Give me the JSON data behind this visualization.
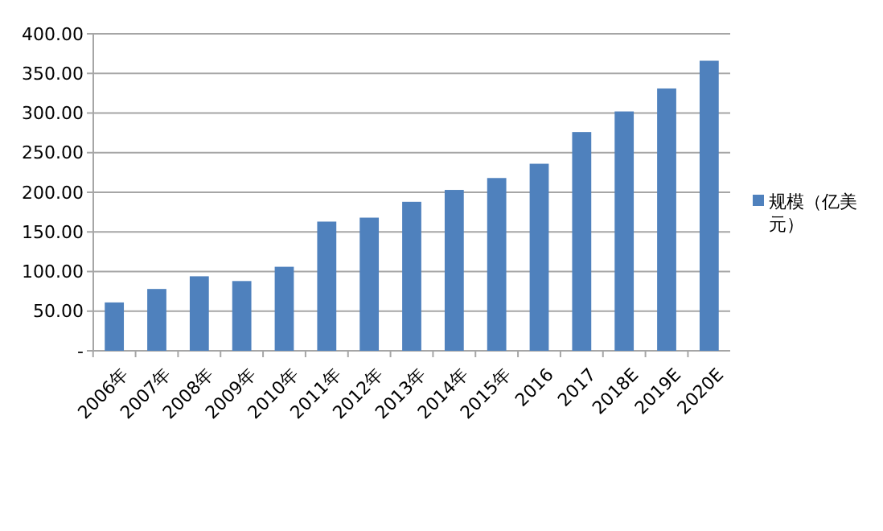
{
  "chart_data": {
    "type": "bar",
    "categories": [
      "2006年",
      "2007年",
      "2008年",
      "2009年",
      "2010年",
      "2011年",
      "2012年",
      "2013年",
      "2014年",
      "2015年",
      "2016",
      "2017",
      "2018E",
      "2019E",
      "2020E"
    ],
    "series": [
      {
        "name": "规模（亿美元）",
        "color": "#4f81bd",
        "values": [
          61,
          78,
          94,
          88,
          106,
          163,
          168,
          188,
          203,
          218,
          236,
          276,
          302,
          331,
          366
        ]
      }
    ],
    "ylim": [
      0,
      400
    ],
    "yticks": [
      {
        "value": 0,
        "label": "-"
      },
      {
        "value": 50,
        "label": "50.00"
      },
      {
        "value": 100,
        "label": "100.00"
      },
      {
        "value": 150,
        "label": "150.00"
      },
      {
        "value": 200,
        "label": "200.00"
      },
      {
        "value": 250,
        "label": "250.00"
      },
      {
        "value": 300,
        "label": "300.00"
      },
      {
        "value": 350,
        "label": "350.00"
      },
      {
        "value": 400,
        "label": "400.00"
      }
    ],
    "grid": "y",
    "legend": "right"
  }
}
